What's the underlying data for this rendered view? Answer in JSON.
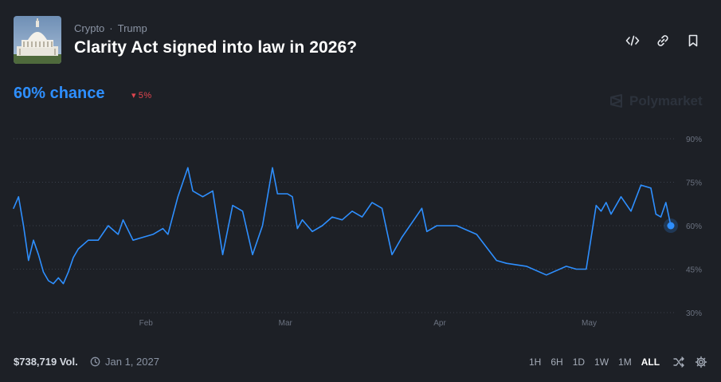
{
  "header": {
    "breadcrumbs": [
      "Crypto",
      "Trump"
    ],
    "separator": "·",
    "title": "Clarity Act signed into law in 2026?",
    "icons": [
      "embed-code-icon",
      "link-icon",
      "bookmark-icon"
    ]
  },
  "summary": {
    "chance_text": "60% chance",
    "delta_text": "5%",
    "delta_direction": "down",
    "brand": "Polymarket"
  },
  "footer": {
    "volume": "$738,719 Vol.",
    "end_date": "Jan 1, 2027",
    "ranges": [
      "1H",
      "6H",
      "1D",
      "1W",
      "1M",
      "ALL"
    ],
    "active_range": "ALL"
  },
  "colors": {
    "background": "#1d2026",
    "line": "#2e8fff",
    "down": "#e0454f",
    "grid": "#3a404b",
    "axis_text": "#6b7280"
  },
  "chart_data": {
    "type": "line",
    "x_axis_labels": [
      "Feb",
      "Mar",
      "Apr",
      "May"
    ],
    "y_axis_labels": [
      "90%",
      "75%",
      "60%",
      "45%",
      "30%"
    ],
    "y_ticks": [
      90,
      75,
      60,
      45,
      30
    ],
    "ylim": [
      30,
      90
    ],
    "xlim": [
      "2026-01-07",
      "2026-05-19"
    ],
    "grid": "horizontal-dotted",
    "y_axis_position": "right",
    "series": [
      {
        "x": [
          "2026-01-07",
          "2026-01-08",
          "2026-01-09",
          "2026-01-10",
          "2026-01-11",
          "2026-01-12",
          "2026-01-13",
          "2026-01-14",
          "2026-01-15",
          "2026-01-16",
          "2026-01-17",
          "2026-01-18",
          "2026-01-19",
          "2026-01-20",
          "2026-01-22",
          "2026-01-24",
          "2026-01-26",
          "2026-01-28",
          "2026-01-29",
          "2026-01-31",
          "2026-02-02",
          "2026-02-04",
          "2026-02-06",
          "2026-02-07",
          "2026-02-09",
          "2026-02-11",
          "2026-02-12",
          "2026-02-14",
          "2026-02-16",
          "2026-02-18",
          "2026-02-20",
          "2026-02-22",
          "2026-02-24",
          "2026-02-26",
          "2026-02-28",
          "2026-03-01",
          "2026-03-02",
          "2026-03-03",
          "2026-03-04",
          "2026-03-05",
          "2026-03-06",
          "2026-03-08",
          "2026-03-10",
          "2026-03-12",
          "2026-03-14",
          "2026-03-16",
          "2026-03-18",
          "2026-03-20",
          "2026-03-22",
          "2026-03-24",
          "2026-03-26",
          "2026-03-28",
          "2026-03-30",
          "2026-03-31",
          "2026-04-02",
          "2026-04-06",
          "2026-04-10",
          "2026-04-14",
          "2026-04-16",
          "2026-04-20",
          "2026-04-24",
          "2026-04-28",
          "2026-04-30",
          "2026-05-02",
          "2026-05-04",
          "2026-05-05",
          "2026-05-06",
          "2026-05-07",
          "2026-05-09",
          "2026-05-11",
          "2026-05-13",
          "2026-05-15",
          "2026-05-16",
          "2026-05-17",
          "2026-05-18",
          "2026-05-19"
        ],
        "y": [
          66,
          70,
          60,
          48,
          55,
          50,
          44,
          41,
          40,
          42,
          40,
          44,
          49,
          52,
          55,
          55,
          60,
          57,
          62,
          55,
          56,
          57,
          59,
          57,
          70,
          80,
          72,
          70,
          72,
          50,
          67,
          65,
          50,
          60,
          80,
          71,
          71,
          71,
          70,
          59,
          62,
          58,
          60,
          63,
          62,
          65,
          63,
          68,
          66,
          50,
          56,
          61,
          66,
          58,
          60,
          60,
          57,
          48,
          47,
          46,
          43,
          46,
          45,
          45,
          67,
          65,
          68,
          64,
          70,
          65,
          74,
          73,
          64,
          63,
          68,
          60
        ]
      }
    ]
  }
}
